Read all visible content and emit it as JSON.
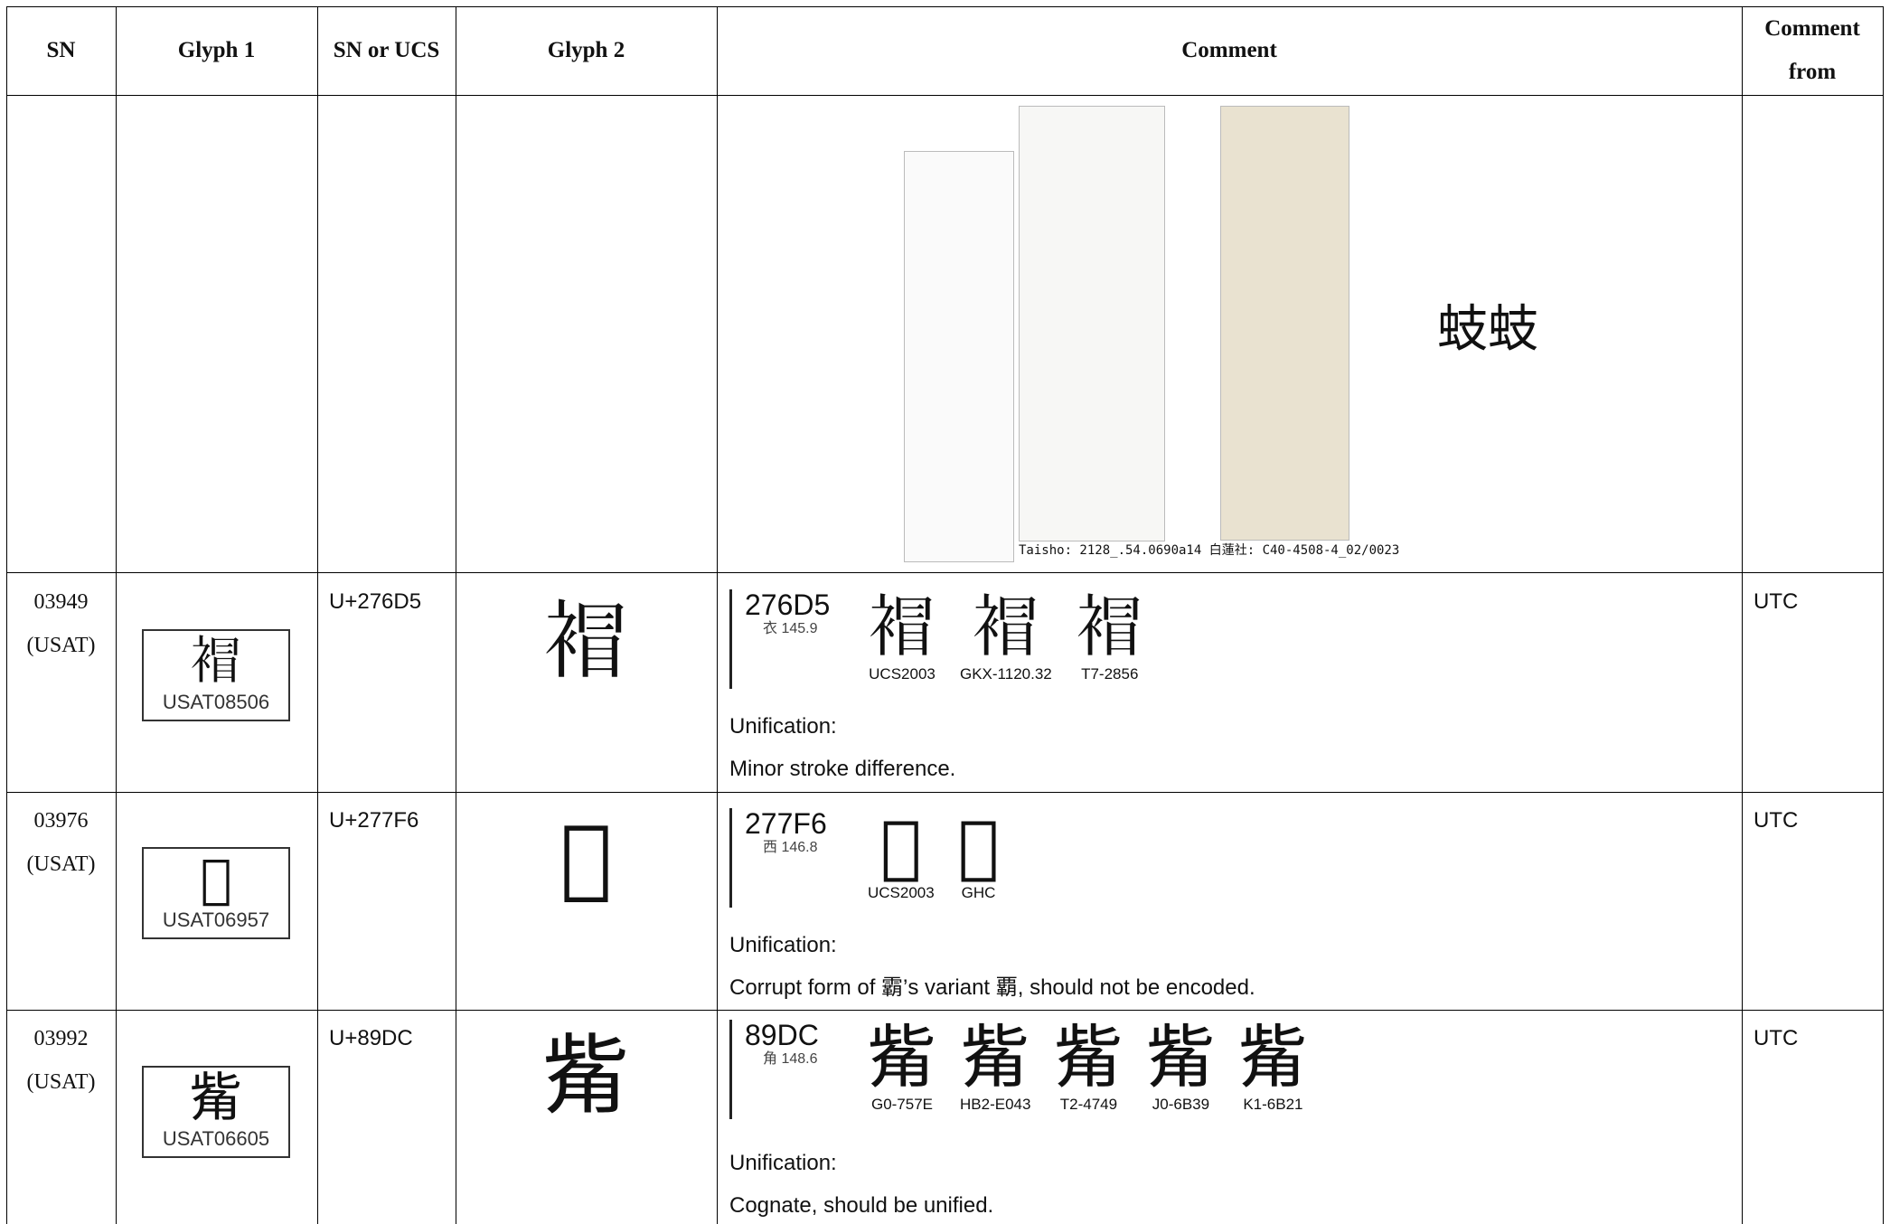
{
  "header": [
    "SN",
    "Glyph 1",
    "SN or UCS",
    "Glyph 2",
    "Comment",
    "Comment from"
  ],
  "rows": [
    {
      "caption": "Taisho: 2128_.54.0690a14 白蓮社: C40-4508-4_02/0023",
      "sample": "蚑蚑"
    },
    {
      "sn": "03949",
      "source": "(USAT)",
      "glyph1": "𧛕",
      "glyph1_label": "USAT08506",
      "ucs": "U+276D5",
      "glyph2": "𧛕",
      "evidence": {
        "code": "276D5",
        "radical": "衣 145.9",
        "glyph": "𧛕",
        "sources": [
          "UCS2003",
          "GKX-1120.32",
          "T7-2856"
        ]
      },
      "comment": [
        "Unification:",
        "Minor stroke difference."
      ],
      "from": "UTC"
    },
    {
      "sn": "03976",
      "source": "(USAT)",
      "glyph1": "𧟶",
      "glyph1_label": "USAT06957",
      "ucs": "U+277F6",
      "glyph2": "𧟶",
      "evidence": {
        "code": "277F6",
        "radical": "西 146.8",
        "glyph": "𧟶",
        "sources": [
          "UCS2003",
          "GHC"
        ]
      },
      "comment": [
        "Unification:",
        "Corrupt form of 霸’s variant 覇, should not be encoded."
      ],
      "from": "UTC"
    },
    {
      "sn": "03992",
      "source": "(USAT)",
      "glyph1": "觜",
      "glyph1_label": "USAT06605",
      "ucs": "U+89DC",
      "glyph2": "觜",
      "evidence": {
        "code": "89DC",
        "radical": "角 148.6",
        "glyph": "觜",
        "sources": [
          "G0-757E",
          "HB2-E043",
          "T2-4749",
          "J0-6B39",
          "K1-6B21"
        ]
      },
      "comment": [
        "Unification:",
        "Cognate, should be unified."
      ],
      "from": "UTC"
    }
  ]
}
